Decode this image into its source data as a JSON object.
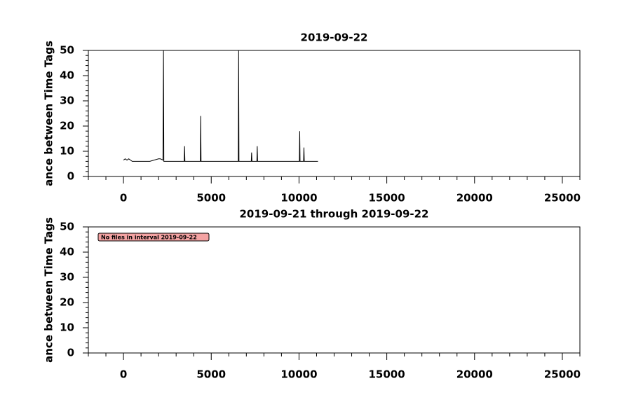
{
  "chart_data": [
    {
      "type": "line",
      "title": "2019-09-22",
      "ylabel": "ance between Time Tags",
      "x": [
        0,
        100,
        200,
        300,
        400,
        500,
        1000,
        1500,
        2000,
        2100,
        2250,
        2280,
        2300,
        2320,
        2400,
        3000,
        3460,
        3480,
        3500,
        4380,
        4400,
        4420,
        5000,
        6000,
        6540,
        6560,
        6580,
        7000,
        7280,
        7300,
        7320,
        7600,
        7620,
        7640,
        8000,
        9000,
        10020,
        10040,
        10060,
        10260,
        10280,
        10300,
        11000,
        11080
      ],
      "values": [
        6.5,
        7,
        6.5,
        7,
        6.5,
        6,
        6,
        6,
        7,
        7,
        6.5,
        50,
        6,
        6,
        6,
        6,
        6,
        12,
        6,
        6,
        24,
        6,
        6,
        6,
        6,
        50,
        6,
        6,
        6,
        9.5,
        6,
        6,
        12,
        6,
        6,
        6,
        6,
        18,
        6,
        6,
        11.5,
        6,
        6,
        6
      ],
      "color": "#000000",
      "xlim": [
        -2000,
        26000
      ],
      "xticks": [
        0,
        5000,
        10000,
        15000,
        20000,
        25000
      ],
      "xminorticks": [
        -2000,
        -1000,
        1000,
        2000,
        3000,
        4000,
        6000,
        7000,
        8000,
        9000,
        11000,
        12000,
        13000,
        14000,
        16000,
        17000,
        18000,
        19000,
        21000,
        22000,
        23000,
        24000,
        26000
      ],
      "ylim": [
        0,
        50
      ],
      "yticks": [
        0,
        10,
        20,
        30,
        40,
        50
      ],
      "yminorticks": [
        2,
        4,
        6,
        8,
        12,
        14,
        16,
        18,
        22,
        24,
        26,
        28,
        32,
        34,
        36,
        38,
        42,
        44,
        46,
        48
      ]
    },
    {
      "type": "line",
      "title": "2019-09-21 through 2019-09-22",
      "ylabel": "ance between Time Tags",
      "annotation": "No files in interval 2019-09-22",
      "xlim": [
        -2000,
        26000
      ],
      "xticks": [
        0,
        5000,
        10000,
        15000,
        20000,
        25000
      ],
      "xminorticks": [
        -2000,
        -1000,
        1000,
        2000,
        3000,
        4000,
        6000,
        7000,
        8000,
        9000,
        11000,
        12000,
        13000,
        14000,
        16000,
        17000,
        18000,
        19000,
        21000,
        22000,
        23000,
        24000,
        26000
      ],
      "ylim": [
        0,
        50
      ],
      "yticks": [
        0,
        10,
        20,
        30,
        40,
        50
      ],
      "yminorticks": [
        2,
        4,
        6,
        8,
        12,
        14,
        16,
        18,
        22,
        24,
        26,
        28,
        32,
        34,
        36,
        38,
        42,
        44,
        46,
        48
      ]
    }
  ]
}
